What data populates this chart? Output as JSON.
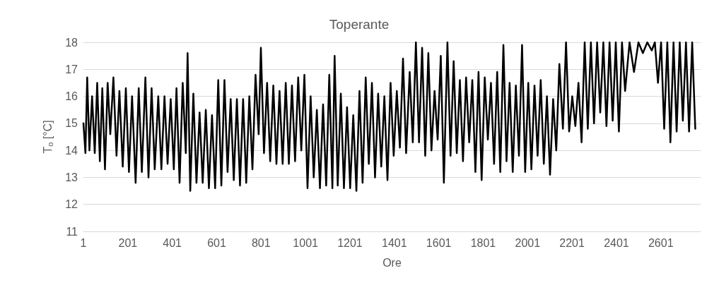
{
  "chart_data": {
    "type": "line",
    "title": "Toperante",
    "xlabel": "Ore",
    "ylabel": "T$_{o}$ [°C]",
    "xlim": [
      1,
      2780
    ],
    "xticks": [
      1,
      201,
      401,
      601,
      801,
      1001,
      1201,
      1401,
      1601,
      1801,
      2001,
      2201,
      2401,
      2601
    ],
    "ylim": [
      11,
      18
    ],
    "yticks": [
      11,
      12,
      13,
      14,
      15,
      16,
      17,
      18
    ],
    "grid": "y",
    "marker": "none",
    "line_style": "solid",
    "series": [
      {
        "color": "#000000",
        "x": [
          1,
          10,
          18,
          28,
          40,
          52,
          63,
          75,
          86,
          98,
          110,
          122,
          136,
          150,
          163,
          178,
          192,
          206,
          220,
          236,
          250,
          264,
          280,
          294,
          308,
          322,
          338,
          352,
          366,
          380,
          394,
          408,
          420,
          434,
          448,
          462,
          470,
          482,
          496,
          510,
          524,
          538,
          552,
          566,
          580,
          594,
          608,
          622,
          636,
          650,
          664,
          678,
          692,
          706,
          720,
          734,
          748,
          762,
          776,
          790,
          800,
          814,
          828,
          842,
          856,
          870,
          884,
          898,
          912,
          926,
          940,
          954,
          968,
          982,
          996,
          1010,
          1024,
          1038,
          1052,
          1066,
          1080,
          1094,
          1108,
          1122,
          1132,
          1146,
          1160,
          1174,
          1188,
          1202,
          1216,
          1230,
          1244,
          1258,
          1272,
          1286,
          1300,
          1314,
          1328,
          1342,
          1356,
          1370,
          1384,
          1398,
          1412,
          1426,
          1440,
          1454,
          1470,
          1484,
          1498,
          1512,
          1526,
          1540,
          1554,
          1568,
          1582,
          1596,
          1610,
          1624,
          1640,
          1654,
          1668,
          1682,
          1696,
          1710,
          1724,
          1738,
          1752,
          1766,
          1780,
          1794,
          1808,
          1822,
          1836,
          1850,
          1864,
          1878,
          1892,
          1906,
          1920,
          1934,
          1948,
          1962,
          1976,
          1990,
          2004,
          2018,
          2032,
          2046,
          2060,
          2074,
          2088,
          2102,
          2116,
          2130,
          2144,
          2160,
          2174,
          2188,
          2202,
          2216,
          2230,
          2244,
          2258,
          2272,
          2286,
          2300,
          2314,
          2328,
          2342,
          2356,
          2370,
          2384,
          2398,
          2412,
          2426,
          2440,
          2460,
          2480,
          2500,
          2520,
          2540,
          2560,
          2574,
          2588,
          2602,
          2616,
          2630,
          2644,
          2658,
          2672,
          2686,
          2700,
          2714,
          2728,
          2742,
          2756
        ],
        "values": [
          15.0,
          13.9,
          16.7,
          14.0,
          16.0,
          13.9,
          16.5,
          13.6,
          16.3,
          13.3,
          16.5,
          14.6,
          16.7,
          13.8,
          16.2,
          13.4,
          16.3,
          13.2,
          16.0,
          12.8,
          16.3,
          13.2,
          16.7,
          13.0,
          16.3,
          13.3,
          16.0,
          13.3,
          16.0,
          13.5,
          15.9,
          13.3,
          16.3,
          12.8,
          16.5,
          13.9,
          17.6,
          12.5,
          16.1,
          12.8,
          15.4,
          12.8,
          15.5,
          12.6,
          15.3,
          12.6,
          16.6,
          12.7,
          16.6,
          13.2,
          15.9,
          12.9,
          15.9,
          12.7,
          15.9,
          12.8,
          16.0,
          13.3,
          16.8,
          14.6,
          17.8,
          13.9,
          16.5,
          13.6,
          16.4,
          13.5,
          16.2,
          13.5,
          16.5,
          13.5,
          16.4,
          13.6,
          16.7,
          14.0,
          16.8,
          12.6,
          16.0,
          13.0,
          15.5,
          12.6,
          15.7,
          12.7,
          16.8,
          12.6,
          17.5,
          12.7,
          16.1,
          12.6,
          15.6,
          12.6,
          15.3,
          12.5,
          16.2,
          12.8,
          16.7,
          13.5,
          16.5,
          13.0,
          16.1,
          13.4,
          16.0,
          12.9,
          16.5,
          13.8,
          16.2,
          14.1,
          17.4,
          13.9,
          16.9,
          14.3,
          18.0,
          14.3,
          17.8,
          13.8,
          17.6,
          14.0,
          16.2,
          14.4,
          17.5,
          12.8,
          18.0,
          13.8,
          17.3,
          13.9,
          16.6,
          13.6,
          16.7,
          14.3,
          16.6,
          13.2,
          16.9,
          12.9,
          16.7,
          14.4,
          16.5,
          13.5,
          16.9,
          13.2,
          17.9,
          13.6,
          16.5,
          13.2,
          16.4,
          13.8,
          17.9,
          13.2,
          16.5,
          13.3,
          16.4,
          13.8,
          16.6,
          13.5,
          16.0,
          13.1,
          15.9,
          14.0,
          17.2,
          14.8,
          18.0,
          14.7,
          16.0,
          14.9,
          16.5,
          14.3,
          18.0,
          14.8,
          18.0,
          15.0,
          18.0,
          15.4,
          18.0,
          14.9,
          18.0,
          15.1,
          18.0,
          14.7,
          18.0,
          16.2,
          18.0,
          16.9,
          18.0,
          17.6,
          18.0,
          17.7,
          18.0,
          16.5,
          18.0,
          14.8,
          18.0,
          14.3,
          18.0,
          14.7,
          18.0,
          15.1,
          18.0,
          14.7,
          18.0,
          14.8
        ]
      }
    ]
  }
}
